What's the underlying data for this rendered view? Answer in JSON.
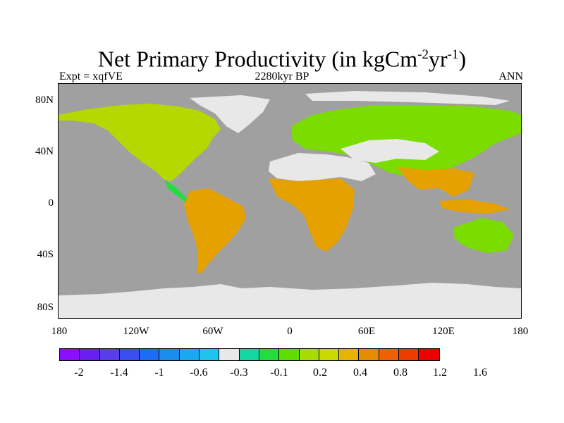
{
  "title": {
    "main": "Net Primary Productivity (in kgCm",
    "sup1": "-2",
    "mid": "yr",
    "sup2": "-1",
    "end": ")"
  },
  "subtitle": {
    "left": "Expt = xqfVE",
    "center": "2280kyr BP",
    "right": "ANN"
  },
  "map": {
    "projection": "cylindrical-equidistant",
    "lon_range": [
      -180,
      180
    ],
    "lat_range": [
      -90,
      90
    ],
    "ocean_color": "#a0a0a0",
    "lat_ticks": [
      "80N",
      "40N",
      "0",
      "40S",
      "80S"
    ],
    "lon_ticks": [
      "180",
      "120W",
      "60W",
      "0",
      "60E",
      "120E",
      "180"
    ],
    "regions": [
      {
        "name": "north-america",
        "color": "#c6d800"
      },
      {
        "name": "south-america",
        "color": "#e4a100"
      },
      {
        "name": "africa",
        "color": "#e4a100"
      },
      {
        "name": "sahara-arabia",
        "color": "#e8e8e8"
      },
      {
        "name": "eurasia",
        "color": "#7bdc00"
      },
      {
        "name": "central-asia-desert",
        "color": "#e8e8e8"
      },
      {
        "name": "southeast-asia",
        "color": "#e4a100"
      },
      {
        "name": "australia",
        "color": "#7bdc00"
      },
      {
        "name": "greenland",
        "color": "#e8e8e8"
      },
      {
        "name": "antarctica",
        "color": "#e8e8e8"
      }
    ]
  },
  "colorbar": {
    "colors": [
      "#8b0eff",
      "#6820f0",
      "#5a3ce8",
      "#3a4ef0",
      "#1e6cf5",
      "#1a8cf0",
      "#1aa8ee",
      "#1ec4ee",
      "#e8e8e8",
      "#10d8a0",
      "#25dc40",
      "#60dc00",
      "#a6dc00",
      "#ccd800",
      "#e4b400",
      "#e48c00",
      "#ee6000",
      "#ee3c00",
      "#ec0000"
    ],
    "labels": [
      "-2",
      "-1.4",
      "-1",
      "-0.6",
      "-0.3",
      "-0.1",
      "0.2",
      "0.4",
      "0.8",
      "1.2",
      "1.6"
    ]
  }
}
